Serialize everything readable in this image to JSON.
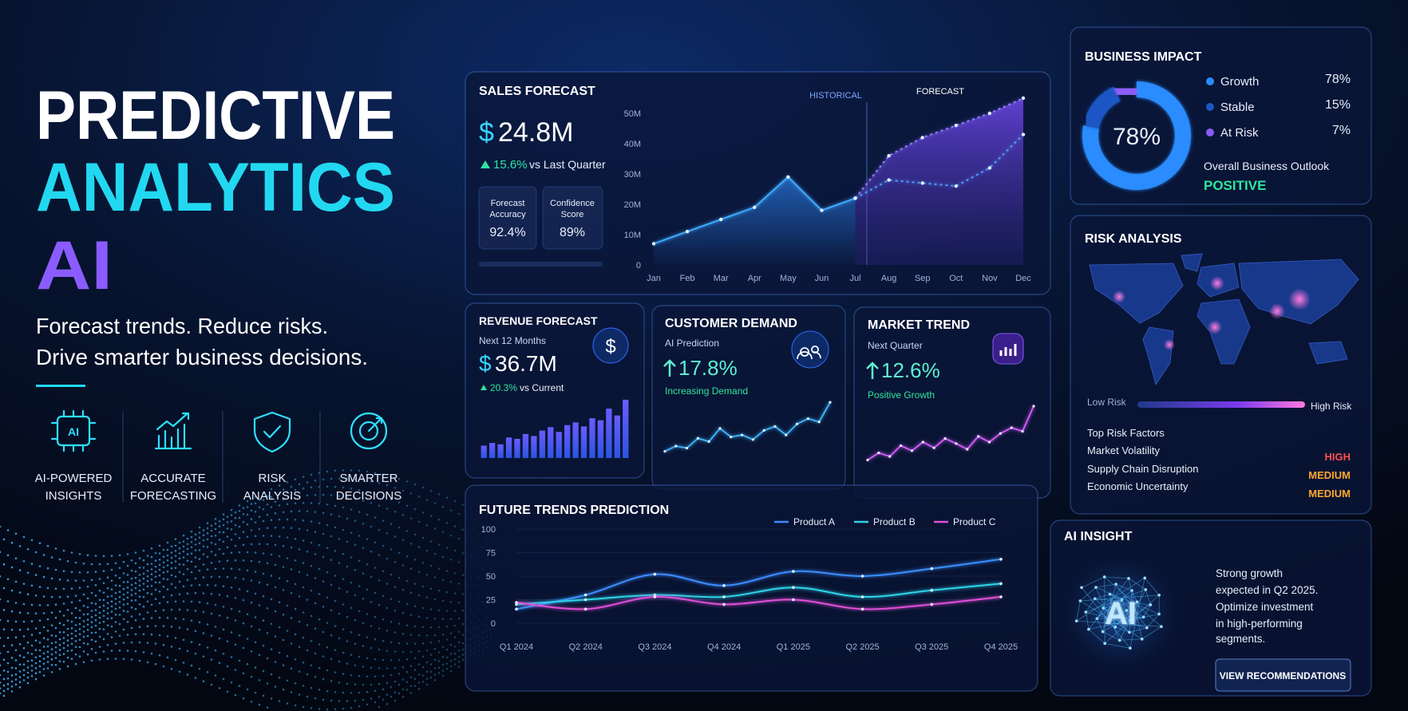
{
  "hero": {
    "title_lines": [
      "PREDICTIVE",
      "ANALYTICS",
      "AI"
    ],
    "tagline": [
      "Forecast trends. Reduce risks.",
      "Drive smarter business decisions."
    ],
    "features": [
      [
        "AI-POWERED",
        "INSIGHTS"
      ],
      [
        "ACCURATE",
        "FORECASTING"
      ],
      [
        "RISK",
        "ANALYSIS"
      ],
      [
        "SMARTER",
        "DECISIONS"
      ]
    ]
  },
  "risk_analysis": {
    "title": "RISK ANALYSIS",
    "low_label": "Low Risk",
    "high_label": "High Risk",
    "factors_title": "Top Risk Factors",
    "factors": [
      {
        "name": "Market Volatility",
        "level": "HIGH"
      },
      {
        "name": "Supply Chain Disruption",
        "level": "MEDIUM"
      },
      {
        "name": "Economic Uncertainty",
        "level": "MEDIUM"
      }
    ]
  },
  "ai_insight": {
    "title": "AI INSIGHT",
    "lines": [
      "Strong growth",
      "expected in Q2 2025.",
      "Optimize investment",
      "in high-performing",
      "segments."
    ],
    "button": "VIEW RECOMMENDATIONS"
  },
  "chart_data": [
    {
      "type": "line",
      "title": "SALES FORECAST",
      "currency": "$",
      "kpi": "24.8M",
      "change": "15.6%",
      "change_note": "vs Last Quarter",
      "stats": [
        {
          "label": [
            "Forecast",
            "Accuracy"
          ],
          "value": "92.4%"
        },
        {
          "label": [
            "Confidence",
            "Score"
          ],
          "value": "89%"
        }
      ],
      "categories": [
        "Jan",
        "Feb",
        "Mar",
        "Apr",
        "May",
        "Jun",
        "Jul",
        "Aug",
        "Sep",
        "Oct",
        "Nov",
        "Dec"
      ],
      "series": [
        {
          "name": "HISTORICAL",
          "color": "#3fa9ff",
          "values": [
            7000000,
            11000000,
            15000000,
            19000000,
            29000000,
            18000000,
            22000000,
            null,
            null,
            null,
            null,
            null
          ]
        },
        {
          "name": "FORECAST",
          "color": "#8f7dff",
          "values": [
            null,
            null,
            null,
            null,
            null,
            null,
            22000000,
            36000000,
            42000000,
            46000000,
            50000000,
            55000000
          ]
        },
        {
          "color": "#4f9dff",
          "values": [
            null,
            null,
            null,
            null,
            null,
            null,
            22000000,
            28000000,
            27000000,
            26000000,
            32000000,
            43000000
          ]
        }
      ],
      "ylim": [
        0,
        55000000
      ],
      "yticks": [
        0,
        {
          "value": 10000000,
          "label": "10M"
        },
        {
          "value": 20000000,
          "label": "20M"
        },
        {
          "value": 30000000,
          "label": "30M"
        },
        {
          "value": 40000000,
          "label": "40M"
        },
        {
          "value": 50000000,
          "label": "50M"
        }
      ]
    },
    {
      "type": "bar",
      "title": "REVENUE FORECAST",
      "subtitle": "Next 12 Months",
      "currency": "$",
      "kpi": "36.7M",
      "change": "20.3%",
      "change_note": "vs Current",
      "values": [
        18,
        22,
        20,
        30,
        28,
        35,
        32,
        40,
        45,
        38,
        48,
        52,
        46,
        58,
        55,
        72,
        62,
        85
      ],
      "ylim": [
        0,
        100
      ]
    },
    {
      "type": "line",
      "title": "CUSTOMER DEMAND",
      "subtitle": "AI Prediction",
      "kpi": "17.8%",
      "note": "Increasing Demand",
      "color": "#3fb6ff",
      "values": [
        20,
        28,
        25,
        40,
        35,
        55,
        42,
        45,
        38,
        52,
        58,
        45,
        62,
        70,
        65,
        95
      ],
      "ylim": [
        0,
        100
      ]
    },
    {
      "type": "line",
      "title": "MARKET TREND",
      "subtitle": "Next Quarter",
      "kpi": "12.6%",
      "note": "Positive Growth",
      "color": "#d65cff",
      "values": [
        15,
        25,
        20,
        35,
        28,
        40,
        32,
        45,
        38,
        30,
        48,
        40,
        52,
        60,
        55,
        90
      ],
      "ylim": [
        0,
        100
      ]
    },
    {
      "type": "line",
      "title": "FUTURE TRENDS PREDICTION",
      "categories": [
        "Q1 2024",
        "Q2 2024",
        "Q3 2024",
        "Q4 2024",
        "Q1 2025",
        "Q2 2025",
        "Q3 2025",
        "Q4 2025"
      ],
      "series": [
        {
          "name": "Product A",
          "color": "#3b8dff",
          "values": [
            15,
            30,
            52,
            40,
            55,
            50,
            58,
            68
          ]
        },
        {
          "name": "Product B",
          "color": "#2fd3e8",
          "values": [
            20,
            25,
            30,
            28,
            38,
            28,
            35,
            42
          ]
        },
        {
          "name": "Product C",
          "color": "#e04fd8",
          "values": [
            22,
            15,
            28,
            20,
            25,
            15,
            20,
            28
          ]
        }
      ],
      "ylim": [
        0,
        100
      ],
      "yticks": [
        0,
        25,
        50,
        75,
        100
      ],
      "grid": true
    },
    {
      "type": "pie",
      "title": "BUSINESS IMPACT",
      "categories": [
        "Growth",
        "Stable",
        "At Risk"
      ],
      "values": [
        78,
        15,
        7
      ],
      "value_labels": [
        "78%",
        "15%",
        "7%"
      ],
      "colors": [
        "#2b8cff",
        "#1a56c4",
        "#8b5cf6"
      ],
      "outlook_label": "Overall Business Outlook",
      "outlook": "POSITIVE"
    }
  ]
}
